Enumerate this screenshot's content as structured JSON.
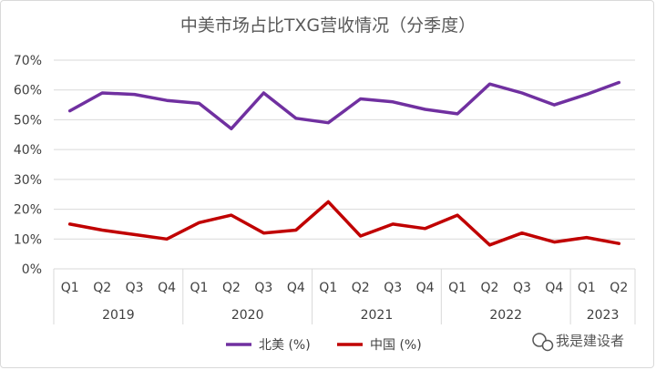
{
  "chart_data": {
    "type": "line",
    "title": "中美市场占比TXG营收情况（分季度）",
    "categories": [
      "Q1",
      "Q2",
      "Q3",
      "Q4",
      "Q1",
      "Q2",
      "Q3",
      "Q4",
      "Q1",
      "Q2",
      "Q3",
      "Q4",
      "Q1",
      "Q2",
      "Q3",
      "Q4",
      "Q1",
      "Q2"
    ],
    "year_groups": [
      {
        "label": "2019",
        "count": 4
      },
      {
        "label": "2020",
        "count": 4
      },
      {
        "label": "2021",
        "count": 4
      },
      {
        "label": "2022",
        "count": 4
      },
      {
        "label": "2023",
        "count": 2
      }
    ],
    "y_ticks": [
      "0%",
      "10%",
      "20%",
      "30%",
      "40%",
      "50%",
      "60%",
      "70%"
    ],
    "ylim": [
      0,
      70
    ],
    "grid": true,
    "legend_position": "bottom",
    "series": [
      {
        "name": "北美 (%)",
        "color": "#7030a0",
        "values": [
          53,
          59,
          58.5,
          56.5,
          55.5,
          47,
          59,
          50.5,
          49,
          57,
          56,
          53.5,
          52,
          62,
          59,
          55,
          58.5,
          62.5
        ]
      },
      {
        "name": "中国 (%)",
        "color": "#c00000",
        "values": [
          15,
          13,
          11.5,
          10,
          15.5,
          18,
          12,
          13,
          22.5,
          11,
          15,
          13.5,
          18,
          8,
          12,
          9,
          10.5,
          8.5
        ]
      }
    ]
  },
  "watermark": {
    "text": "我是建设者",
    "icon": "wechat-logo-icon"
  }
}
